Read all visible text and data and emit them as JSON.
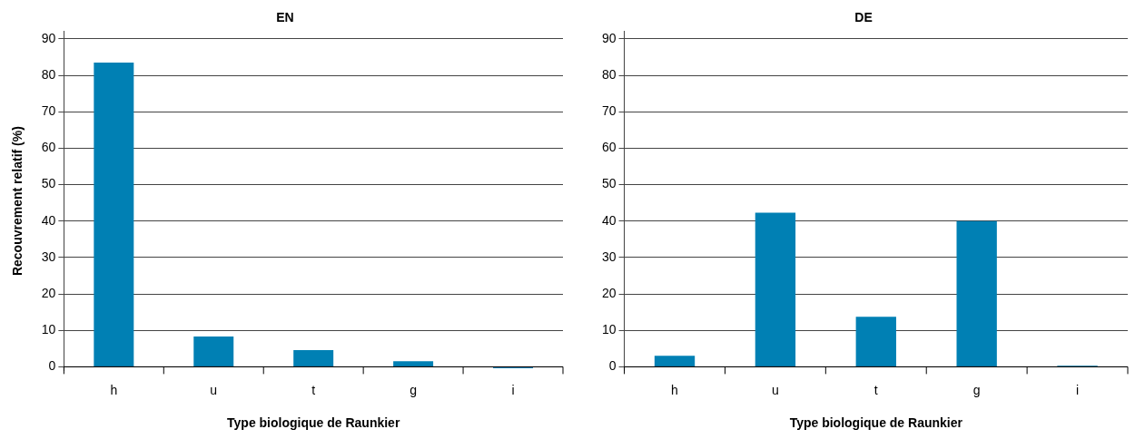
{
  "chart_data": [
    {
      "type": "bar",
      "title": "EN",
      "xlabel": "Type biologique de Raunkier",
      "ylabel": "Recouvrement relatif (%)",
      "categories": [
        "h",
        "u",
        "t",
        "g",
        "i"
      ],
      "values": [
        83.5,
        8.3,
        4.6,
        1.5,
        -0.4
      ],
      "color": "#0080b4",
      "ylim": [
        -1,
        92
      ],
      "yticks": [
        0,
        10,
        20,
        30,
        40,
        50,
        60,
        70,
        80,
        90
      ],
      "grid": "y"
    },
    {
      "type": "bar",
      "title": "DE",
      "xlabel": "Type biologique de Raunkier",
      "categories": [
        "h",
        "u",
        "t",
        "g",
        "i"
      ],
      "values": [
        3,
        42.3,
        13.7,
        40,
        0.3
      ],
      "color": "#0080b4",
      "ylim": [
        -1,
        92
      ],
      "yticks": [
        0,
        10,
        20,
        30,
        40,
        50,
        60,
        70,
        80,
        90
      ],
      "grid": "y"
    }
  ]
}
